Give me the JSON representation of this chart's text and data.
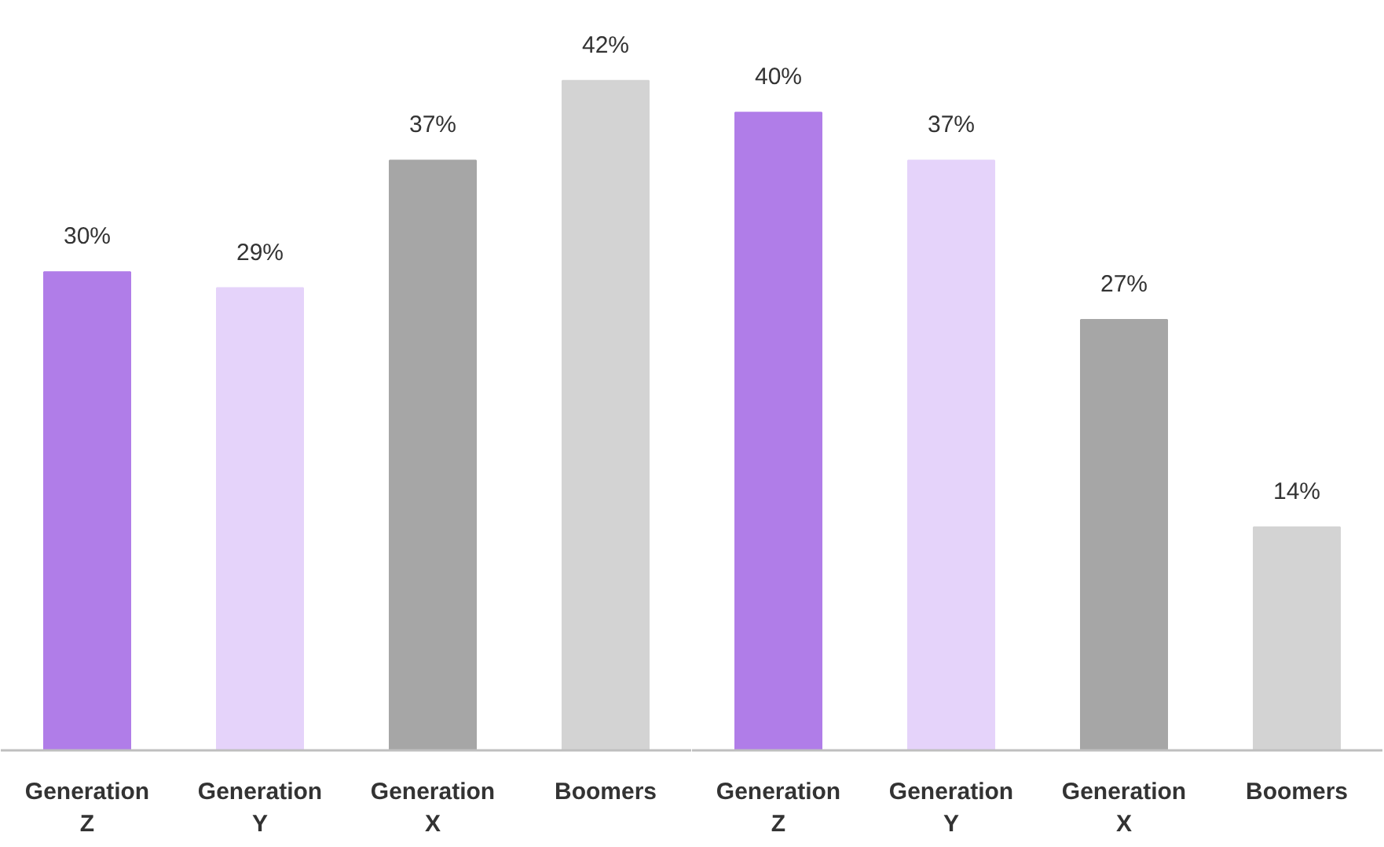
{
  "chart_data": [
    {
      "type": "bar",
      "categories": [
        "Generation Z",
        "Generation Y",
        "Generation X",
        "Boomers"
      ],
      "values": [
        30,
        29,
        37,
        42
      ],
      "value_labels": [
        "30%",
        "29%",
        "37%",
        "42%"
      ],
      "colors": [
        "#b07de8",
        "#e5d3fa",
        "#a6a6a6",
        "#d3d3d3"
      ]
    },
    {
      "type": "bar",
      "categories": [
        "Generation Z",
        "Generation Y",
        "Generation X",
        "Boomers"
      ],
      "values": [
        40,
        37,
        27,
        14
      ],
      "value_labels": [
        "40%",
        "37%",
        "27%",
        "14%"
      ],
      "colors": [
        "#b07de8",
        "#e5d3fa",
        "#a6a6a6",
        "#d3d3d3"
      ]
    }
  ]
}
